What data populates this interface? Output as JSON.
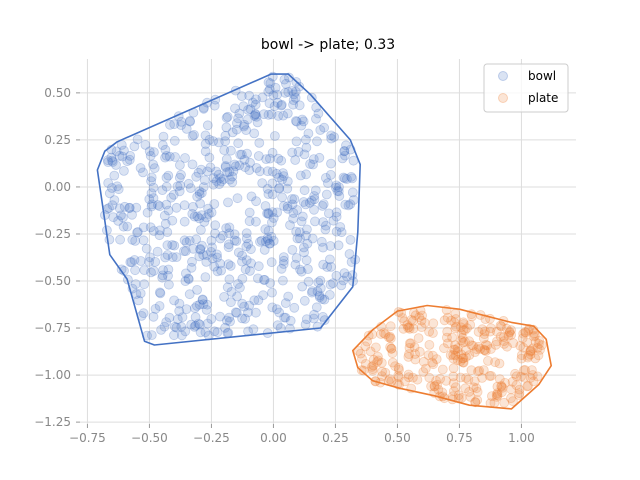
{
  "chart_data": {
    "type": "scatter",
    "title": "bowl -> plate; 0.33",
    "xlabel": "",
    "ylabel": "",
    "xlim": [
      -0.78,
      1.22
    ],
    "ylim": [
      -1.26,
      0.68
    ],
    "xticks": [
      -0.75,
      -0.5,
      -0.25,
      0.0,
      0.25,
      0.5,
      0.75,
      1.0
    ],
    "xtick_labels": [
      "−0.75",
      "−0.50",
      "−0.25",
      "0.00",
      "0.25",
      "0.50",
      "0.75",
      "1.00"
    ],
    "yticks": [
      -1.25,
      -1.0,
      -0.75,
      -0.5,
      -0.25,
      0.0,
      0.25,
      0.5
    ],
    "ytick_labels": [
      "−1.25",
      "−1.00",
      "−0.75",
      "−0.50",
      "−0.25",
      "0.00",
      "0.25",
      "0.50"
    ],
    "grid": true,
    "legend_position": "top-right",
    "series": [
      {
        "name": "bowl",
        "color": "#4472c4",
        "point_alpha": 0.2,
        "hull": [
          [
            -0.71,
            0.09
          ],
          [
            -0.68,
            0.19
          ],
          [
            -0.63,
            0.24
          ],
          [
            -0.01,
            0.6
          ],
          [
            0.06,
            0.6
          ],
          [
            0.15,
            0.49
          ],
          [
            0.31,
            0.25
          ],
          [
            0.35,
            0.12
          ],
          [
            0.34,
            -0.24
          ],
          [
            0.32,
            -0.53
          ],
          [
            0.19,
            -0.75
          ],
          [
            -0.48,
            -0.84
          ],
          [
            -0.52,
            -0.82
          ],
          [
            -0.59,
            -0.49
          ],
          [
            -0.66,
            -0.36
          ]
        ],
        "cluster_spec": {
          "seed": 11,
          "count": 650,
          "x_range": [
            -0.69,
            0.33
          ],
          "y_range": [
            -0.84,
            0.6
          ]
        }
      },
      {
        "name": "plate",
        "color": "#ed7d31",
        "point_alpha": 0.2,
        "hull": [
          [
            0.32,
            -0.87
          ],
          [
            0.4,
            -0.76
          ],
          [
            0.5,
            -0.66
          ],
          [
            0.62,
            -0.63
          ],
          [
            0.75,
            -0.65
          ],
          [
            0.96,
            -0.72
          ],
          [
            1.05,
            -0.74
          ],
          [
            1.1,
            -0.81
          ],
          [
            1.12,
            -0.95
          ],
          [
            1.07,
            -1.05
          ],
          [
            0.96,
            -1.18
          ],
          [
            0.79,
            -1.16
          ],
          [
            0.65,
            -1.11
          ],
          [
            0.51,
            -1.07
          ],
          [
            0.4,
            -1.03
          ],
          [
            0.34,
            -0.96
          ]
        ],
        "cluster_spec": {
          "seed": 29,
          "count": 300,
          "x_range": [
            0.33,
            1.1
          ],
          "y_range": [
            -1.16,
            -0.65
          ]
        }
      }
    ]
  }
}
